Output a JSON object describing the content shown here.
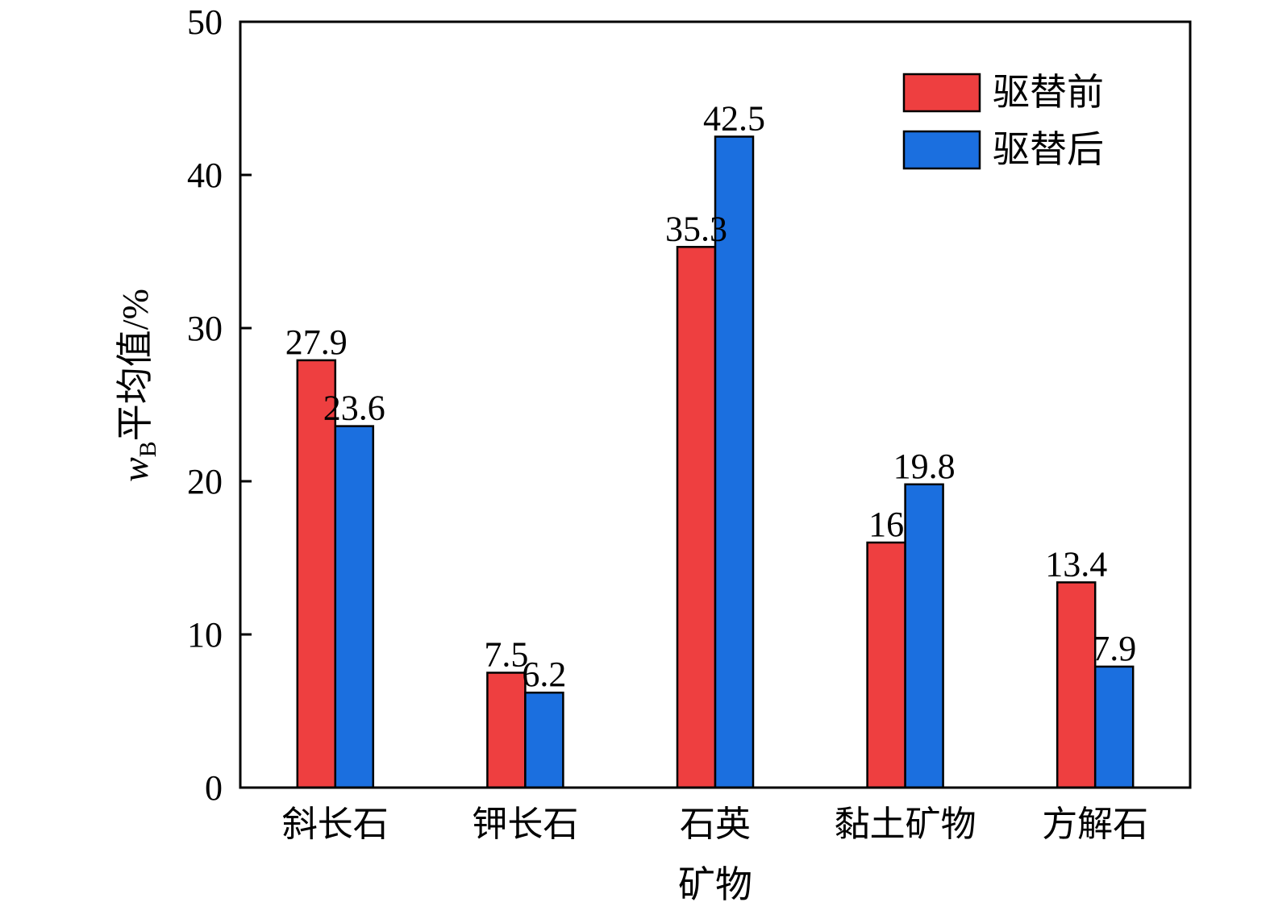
{
  "chart_data": {
    "type": "bar",
    "categories": [
      "斜长石",
      "钾长石",
      "石英",
      "黏土矿物",
      "方解石"
    ],
    "series": [
      {
        "name": "驱替前",
        "color": "#ee3f40",
        "values": [
          27.9,
          7.5,
          35.3,
          16,
          13.4
        ],
        "labels": [
          "27.9",
          "7.5",
          "35.3",
          "16",
          "13.4"
        ]
      },
      {
        "name": "驱替后",
        "color": "#1b6fdf",
        "values": [
          23.6,
          6.2,
          42.5,
          19.8,
          7.9
        ],
        "labels": [
          "23.6",
          "6.2",
          "42.5",
          "19.8",
          "7.9"
        ]
      }
    ],
    "xlabel": "矿物",
    "ylabel_main": "w",
    "ylabel_sub": "B",
    "ylabel_rest": "平均值/%",
    "ylim": [
      0,
      50
    ],
    "yticks": [
      0,
      10,
      20,
      30,
      40,
      50
    ],
    "grid": false,
    "legend_position": "top-right"
  }
}
